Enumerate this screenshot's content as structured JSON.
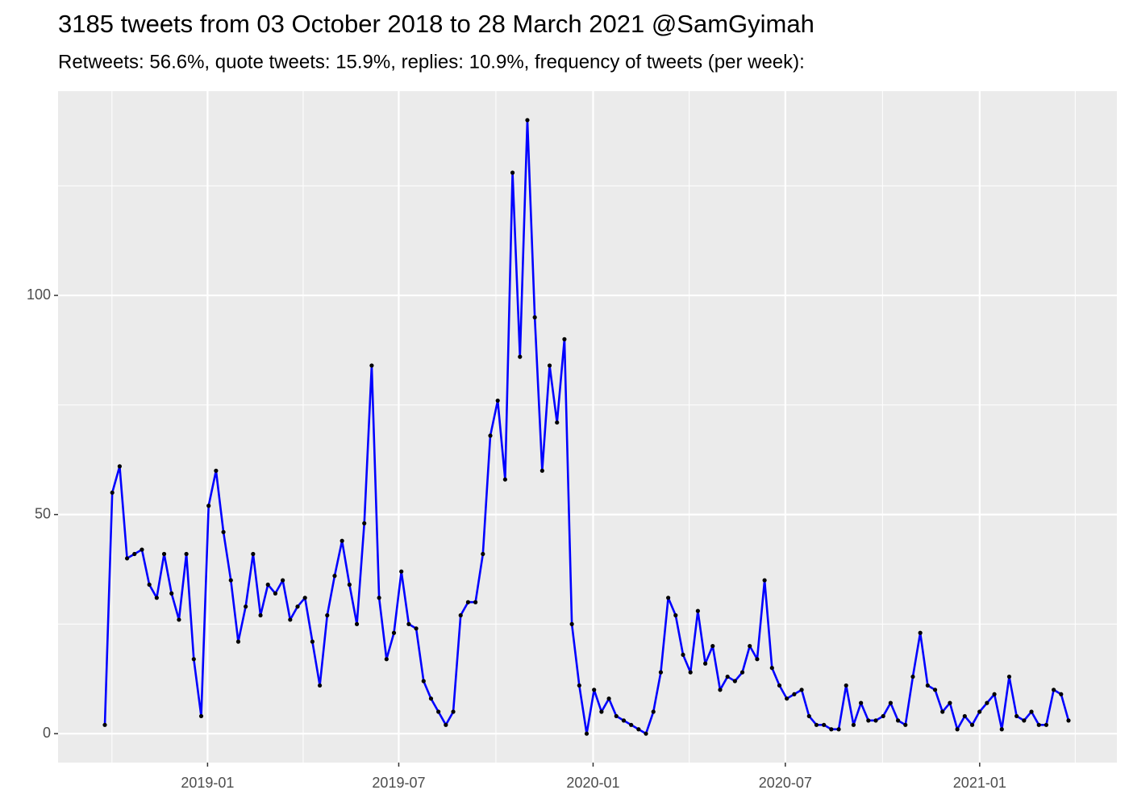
{
  "chart_data": {
    "type": "line",
    "title": "3185 tweets from 03 October 2018 to 28 March 2021 @SamGyimah",
    "subtitle": "Retweets: 56.6%, quote tweets: 15.9%, replies: 10.9%, frequency of tweets (per week):",
    "values": [
      2,
      55,
      61,
      40,
      41,
      42,
      34,
      31,
      41,
      32,
      26,
      41,
      17,
      4,
      52,
      60,
      46,
      35,
      21,
      29,
      41,
      27,
      34,
      32,
      35,
      26,
      29,
      31,
      21,
      11,
      27,
      36,
      44,
      34,
      25,
      48,
      84,
      31,
      17,
      23,
      37,
      25,
      24,
      12,
      8,
      5,
      2,
      5,
      27,
      30,
      30,
      41,
      68,
      76,
      58,
      128,
      86,
      140,
      95,
      60,
      84,
      71,
      90,
      25,
      11,
      0,
      10,
      5,
      8,
      4,
      3,
      2,
      1,
      0,
      5,
      14,
      31,
      27,
      18,
      14,
      28,
      16,
      20,
      10,
      13,
      12,
      14,
      20,
      17,
      35,
      15,
      11,
      8,
      9,
      10,
      4,
      2,
      2,
      1,
      1,
      11,
      2,
      7,
      3,
      3,
      4,
      7,
      3,
      2,
      13,
      23,
      11,
      10,
      5,
      7,
      1,
      4,
      2,
      5,
      7,
      9,
      1,
      13,
      4,
      3,
      5,
      2,
      2,
      10,
      9,
      3
    ],
    "color": "#0000ff",
    "point_color": "#000000",
    "xlim": [
      "2018-08",
      "2021-05"
    ],
    "xticks": [
      "2019-01",
      "2019-07",
      "2020-01",
      "2020-07",
      "2021-01"
    ],
    "ylim": [
      -6.6,
      146.6
    ],
    "yticks": [
      0,
      50,
      100
    ],
    "grid": true
  }
}
